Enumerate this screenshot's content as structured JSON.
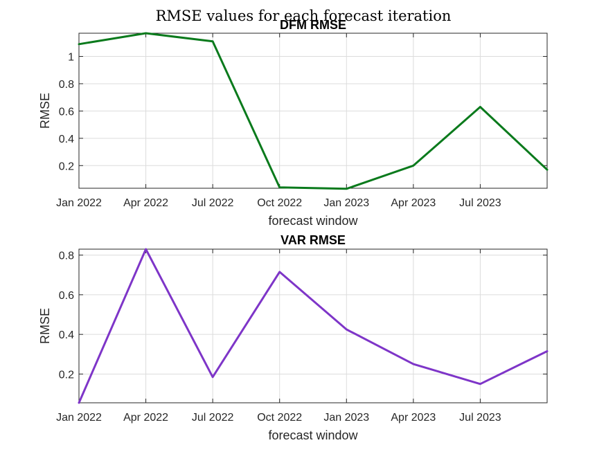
{
  "figure": {
    "suptitle": "RMSE values for each forecast iteration"
  },
  "chart_data": [
    {
      "type": "line",
      "title": "DFM RMSE",
      "xlabel": "forecast window",
      "ylabel": "RMSE",
      "x": [
        "2022-01",
        "2022-04",
        "2022-07",
        "2022-10",
        "2023-01",
        "2023-04",
        "2023-07",
        "2023-10"
      ],
      "x_tick_labels": [
        "Jan 2022",
        "Apr 2022",
        "Jul 2022",
        "Oct 2022",
        "Jan 2023",
        "Apr 2023",
        "Jul 2023"
      ],
      "y_ticks": [
        "0.2",
        "0.4",
        "0.6",
        "0.8",
        "1"
      ],
      "ylim": [
        0.034,
        1.17
      ],
      "grid": true,
      "series": [
        {
          "values": [
            1.09,
            1.17,
            1.11,
            0.04,
            0.03,
            0.2,
            0.63,
            0.17
          ],
          "color": "#0a7a1c"
        }
      ]
    },
    {
      "type": "line",
      "title": "VAR RMSE",
      "xlabel": "forecast window",
      "ylabel": "RMSE",
      "x": [
        "2022-01",
        "2022-04",
        "2022-07",
        "2022-10",
        "2023-01",
        "2023-04",
        "2023-07",
        "2023-10"
      ],
      "x_tick_labels": [
        "Jan 2022",
        "Apr 2022",
        "Jul 2022",
        "Oct 2022",
        "Jan 2023",
        "Apr 2023",
        "Jul 2023"
      ],
      "y_ticks": [
        "0.2",
        "0.4",
        "0.6",
        "0.8"
      ],
      "ylim": [
        0.055,
        0.83
      ],
      "grid": true,
      "series": [
        {
          "values": [
            0.055,
            0.83,
            0.185,
            0.715,
            0.425,
            0.25,
            0.15,
            0.315
          ],
          "color": "#7e35c8"
        }
      ]
    }
  ]
}
